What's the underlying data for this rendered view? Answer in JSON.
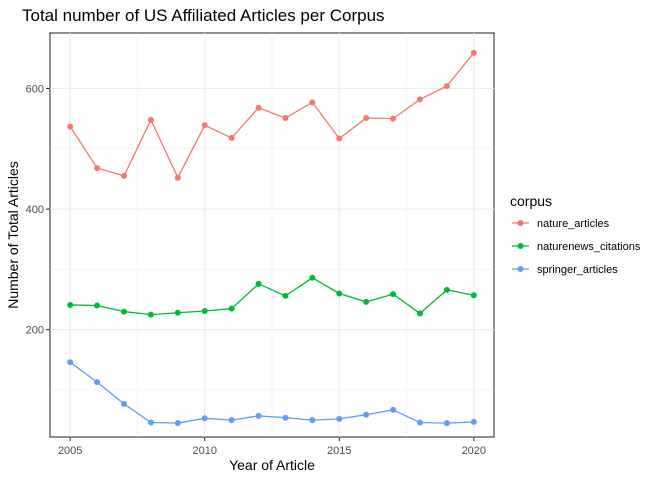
{
  "chart_data": {
    "type": "line",
    "title": "Total number of US Affiliated Articles per Corpus",
    "xlabel": "Year of Article",
    "ylabel": "Number of Total Articles",
    "x": [
      2005,
      2006,
      2007,
      2008,
      2009,
      2010,
      2011,
      2012,
      2013,
      2014,
      2015,
      2016,
      2017,
      2018,
      2019,
      2020
    ],
    "xlim": [
      2004.25,
      2020.75
    ],
    "ylim": [
      22,
      692
    ],
    "xticks": [
      2005,
      2010,
      2015,
      2020
    ],
    "xtick_labels": [
      "2005",
      "2010",
      "2015",
      "2020"
    ],
    "yticks": [
      200,
      400,
      600
    ],
    "ytick_labels": [
      "200",
      "400",
      "600"
    ],
    "x_minor": [
      2007.5,
      2012.5,
      2017.5
    ],
    "y_minor": [
      100,
      300,
      500
    ],
    "grid": true,
    "legend": {
      "title": "corpus",
      "position": "right"
    },
    "series": [
      {
        "name": "nature_articles",
        "color": "#F8766D",
        "values": [
          537,
          468,
          455,
          548,
          452,
          539,
          518,
          568,
          551,
          577,
          517,
          551,
          550,
          582,
          604,
          659
        ]
      },
      {
        "name": "naturenews_citations",
        "color": "#00BA38",
        "values": [
          241,
          240,
          230,
          225,
          228,
          231,
          235,
          276,
          256,
          286,
          260,
          246,
          259,
          227,
          266,
          257
        ]
      },
      {
        "name": "springer_articles",
        "color": "#619CFF",
        "values": [
          146,
          113,
          77,
          46,
          45,
          53,
          50,
          57,
          54,
          50,
          52,
          59,
          67,
          46,
          45,
          47
        ]
      }
    ]
  }
}
